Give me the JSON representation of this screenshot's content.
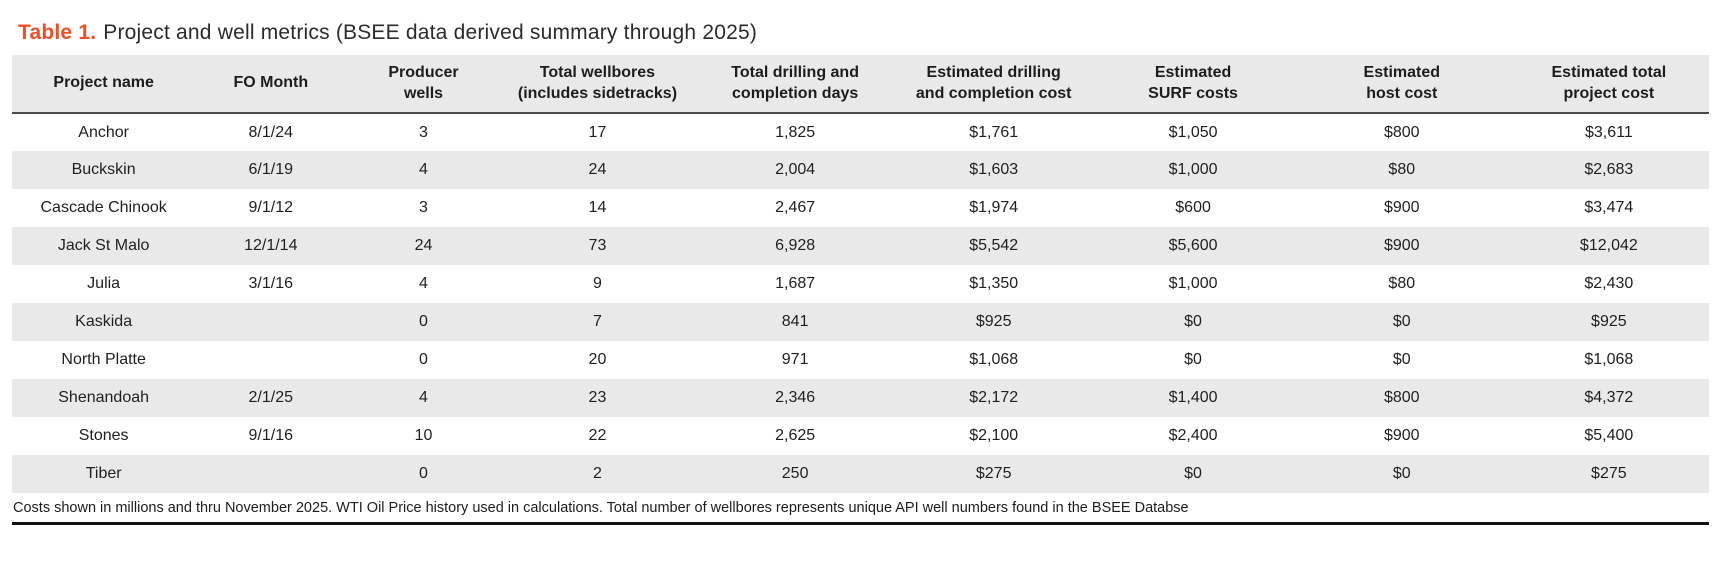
{
  "caption": {
    "label": "Table 1.",
    "text": "Project and well metrics (BSEE data derived summary through 2025)"
  },
  "table": {
    "columns": [
      "Project name",
      "FO Month",
      "Producer\nwells",
      "Total wellbores\n(includes sidetracks)",
      "Total drilling and\ncompletion days",
      "Estimated drilling\nand completion cost",
      "Estimated\nSURF costs",
      "Estimated\nhost cost",
      "Estimated total\nproject cost"
    ],
    "rows": [
      [
        "Anchor",
        "8/1/24",
        "3",
        "17",
        "1,825",
        "$1,761",
        "$1,050",
        "$800",
        "$3,611"
      ],
      [
        "Buckskin",
        "6/1/19",
        "4",
        "24",
        "2,004",
        "$1,603",
        "$1,000",
        "$80",
        "$2,683"
      ],
      [
        "Cascade Chinook",
        "9/1/12",
        "3",
        "14",
        "2,467",
        "$1,974",
        "$600",
        "$900",
        "$3,474"
      ],
      [
        "Jack St Malo",
        "12/1/14",
        "24",
        "73",
        "6,928",
        "$5,542",
        "$5,600",
        "$900",
        "$12,042"
      ],
      [
        "Julia",
        "3/1/16",
        "4",
        "9",
        "1,687",
        "$1,350",
        "$1,000",
        "$80",
        "$2,430"
      ],
      [
        "Kaskida",
        "",
        "0",
        "7",
        "841",
        "$925",
        "$0",
        "$0",
        "$925"
      ],
      [
        "North Platte",
        "",
        "0",
        "20",
        "971",
        "$1,068",
        "$0",
        "$0",
        "$1,068"
      ],
      [
        "Shenandoah",
        "2/1/25",
        "4",
        "23",
        "2,346",
        "$2,172",
        "$1,400",
        "$800",
        "$4,372"
      ],
      [
        "Stones",
        "9/1/16",
        "10",
        "22",
        "2,625",
        "$2,100",
        "$2,400",
        "$900",
        "$5,400"
      ],
      [
        "Tiber",
        "",
        "0",
        "2",
        "250",
        "$275",
        "$0",
        "$0",
        "$275"
      ]
    ]
  },
  "footnote": "Costs shown in millions and thru November 2025. WTI Oil Price history used in calculations. Total number of wellbores represents unique API well numbers found in the BSEE Databse",
  "colors": {
    "accent": "#F04E26",
    "row_stripe": "#E9E9EA",
    "header_rule": "#4C4C4E",
    "bottom_rule": "#111111"
  }
}
